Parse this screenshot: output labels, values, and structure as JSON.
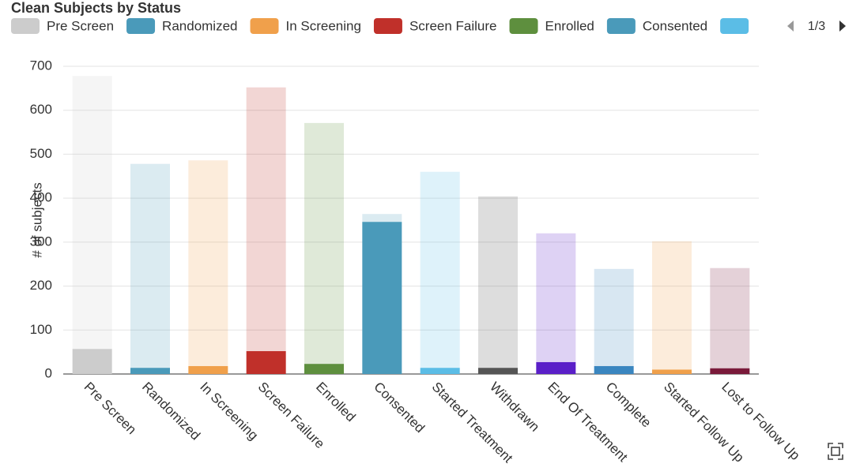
{
  "chart_data": {
    "type": "stacked-bar",
    "title": "Clean Subjects by Status",
    "y_label": "# of subjects",
    "legend_page": "1/3",
    "categories": [
      "Pre Screen",
      "Randomized",
      "In Screening",
      "Screen Failure",
      "Enrolled",
      "Consented",
      "Started Treatment",
      "Withdrawn",
      "End Of Treatment",
      "Complete",
      "Started Follow Up",
      "Lost to Follow Up"
    ],
    "colors": [
      "#cccccc",
      "#4a9aba",
      "#f0a04b",
      "#c0302a",
      "#5e8f3e",
      "#4a9aba",
      "#5bbde6",
      "#555555",
      "#5a1fc8",
      "#3a86c0",
      "#f0a04b",
      "#7a1a3a"
    ],
    "series": [
      {
        "values": [
          57,
          14,
          18,
          52,
          23,
          346,
          14,
          14,
          27,
          18,
          10,
          13
        ]
      },
      {
        "values": [
          621,
          464,
          468,
          600,
          548,
          18,
          446,
          390,
          293,
          221,
          292,
          228
        ],
        "opacity": 0.2
      }
    ],
    "ylim": [
      0,
      700
    ],
    "yticks": [
      0,
      100,
      200,
      300,
      400,
      500,
      600,
      700
    ],
    "grid": true
  }
}
